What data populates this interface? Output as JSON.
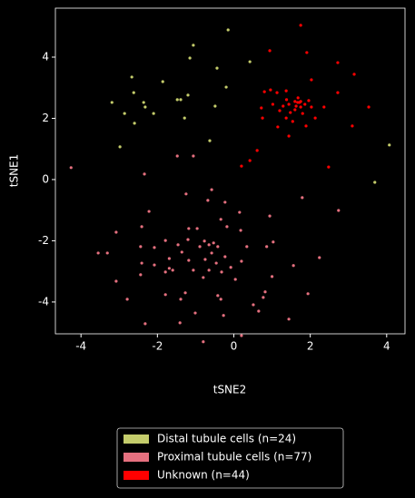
{
  "chart_data": {
    "type": "scatter",
    "x_label": "tSNE2",
    "y_label": "tSNE1",
    "xlim": [
      -4.67,
      4.48
    ],
    "ylim": [
      -5.04,
      5.6
    ],
    "xticks": [
      -4,
      -2,
      0,
      2,
      4
    ],
    "yticks": [
      -4,
      -2,
      0,
      2,
      4
    ],
    "legend": "bottom",
    "series": [
      {
        "name": "Distal tubule cells (n=24)",
        "color": "#c4cc6b",
        "x": [
          -0.15,
          -1.06,
          -1.15,
          -0.44,
          0.42,
          -2.67,
          -1.86,
          -2.62,
          -0.2,
          -3.19,
          -2.36,
          -1.48,
          -1.2,
          -1.39,
          -2.86,
          -2.1,
          -2.6,
          -0.49,
          -1.29,
          -0.63,
          -2.98,
          4.07,
          3.69,
          -2.32
        ],
        "values": [
          4.89,
          4.39,
          3.97,
          3.64,
          3.85,
          3.35,
          3.2,
          2.84,
          3.02,
          2.52,
          2.52,
          2.61,
          2.76,
          2.61,
          2.16,
          2.16,
          1.84,
          2.4,
          2.01,
          1.27,
          1.07,
          1.13,
          -0.09,
          2.37
        ]
      },
      {
        "name": "Proximal tubule cells (n=77)",
        "color": "#e5707f",
        "x": [
          -4.26,
          -2.34,
          -1.48,
          -1.06,
          -1.25,
          -0.58,
          -0.23,
          0.94,
          0.15,
          -2.22,
          -3.08,
          -3.31,
          -2.41,
          -1.18,
          -0.96,
          -1.2,
          -0.77,
          -0.65,
          -0.53,
          -0.42,
          -0.89,
          -1.46,
          -1.36,
          -1.18,
          -1.06,
          -0.58,
          -0.46,
          -0.65,
          -0.23,
          -0.08,
          -0.32,
          0.2,
          0.34,
          0.86,
          1.03,
          0.18,
          -0.34,
          -1.79,
          -2.08,
          -2.41,
          -2.44,
          -1.69,
          -1.6,
          -1.79,
          -2.08,
          -2.44,
          -3.08,
          -1.79,
          -1.27,
          -1.39,
          -2.79,
          -2.32,
          -1.41,
          -1.01,
          -0.8,
          -0.34,
          -0.42,
          -0.27,
          0.04,
          0.2,
          0.51,
          0.65,
          0.77,
          1.0,
          0.82,
          1.44,
          1.56,
          1.94,
          2.24,
          2.74,
          1.79,
          -0.68,
          -0.18,
          -1.69,
          -0.75,
          -0.8,
          -3.55
        ],
        "values": [
          0.39,
          0.18,
          0.77,
          0.77,
          -0.47,
          -0.33,
          -0.74,
          -1.19,
          -1.07,
          -1.04,
          -1.72,
          -2.4,
          -1.54,
          -1.6,
          -1.6,
          -1.96,
          -2.01,
          -2.13,
          -2.07,
          -2.19,
          -2.19,
          -2.13,
          -2.37,
          -2.64,
          -2.96,
          -2.4,
          -2.73,
          -2.96,
          -2.52,
          -2.87,
          -3.02,
          -2.67,
          -2.19,
          -2.19,
          -2.04,
          -1.66,
          -1.3,
          -1.99,
          -2.22,
          -2.73,
          -2.19,
          -2.9,
          -2.96,
          -3.02,
          -2.79,
          -3.11,
          -3.32,
          -3.76,
          -3.7,
          -3.91,
          -3.91,
          -4.71,
          -4.68,
          -4.36,
          -5.3,
          -3.91,
          -3.79,
          -4.44,
          -3.26,
          -5.1,
          -4.09,
          -4.3,
          -3.85,
          -3.17,
          -3.67,
          -4.56,
          -2.81,
          -3.73,
          -2.55,
          -1.01,
          -0.59,
          -0.68,
          -1.54,
          -2.58,
          -2.61,
          -3.2,
          -2.4
        ]
      },
      {
        "name": "Unknown (n=44)",
        "color": "#ff0000",
        "x": [
          1.75,
          0.94,
          1.91,
          2.72,
          3.15,
          0.96,
          2.03,
          0.8,
          1.13,
          1.37,
          0.72,
          1.02,
          1.29,
          1.38,
          1.6,
          1.68,
          1.72,
          1.63,
          1.75,
          1.48,
          1.37,
          1.54,
          1.8,
          2.03,
          2.36,
          2.72,
          3.53,
          3.1,
          1.89,
          1.44,
          1.15,
          0.75,
          1.44,
          0.61,
          0.42,
          0.2,
          1.2,
          1.86,
          1.96,
          2.13,
          2.48,
          1.67,
          1.75,
          1.6
        ],
        "values": [
          5.04,
          4.21,
          4.15,
          3.82,
          3.44,
          2.93,
          3.26,
          2.87,
          2.84,
          2.9,
          2.34,
          2.46,
          2.4,
          2.61,
          2.55,
          2.67,
          2.52,
          2.4,
          2.37,
          2.19,
          2.01,
          1.9,
          2.16,
          2.37,
          2.37,
          2.84,
          2.37,
          1.75,
          1.75,
          1.42,
          1.72,
          2.01,
          2.46,
          0.95,
          0.62,
          0.44,
          2.25,
          2.46,
          2.58,
          2.01,
          0.41,
          2.52,
          2.55,
          2.28
        ]
      }
    ]
  }
}
